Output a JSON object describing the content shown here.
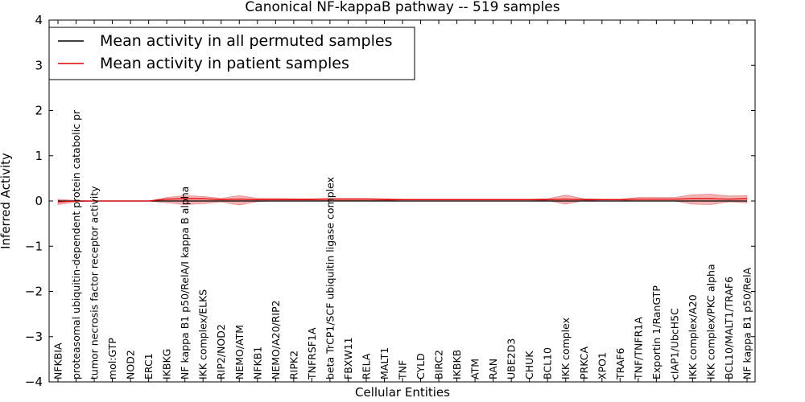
{
  "chart_data": {
    "type": "line",
    "title": "Canonical NF-kappaB pathway -- 519 samples",
    "xlabel": "Cellular Entities",
    "ylabel": "Inferred Activity",
    "ylim": [
      -4,
      4
    ],
    "yticks": [
      -4,
      -3,
      -2,
      -1,
      0,
      1,
      2,
      3,
      4
    ],
    "ytick_labels": [
      "−4",
      "−3",
      "−2",
      "−1",
      "0",
      "1",
      "2",
      "3",
      "4"
    ],
    "legend_position": "top-left",
    "categories": [
      "NFKBIA",
      "proteasomal ubiquitin-dependent protein catabolic pr",
      "tumor necrosis factor receptor activity",
      "mol:GTP",
      "NOD2",
      "ERC1",
      "IKBKG",
      "NF kappa B1 p50/RelA/I kappa B alpha",
      "IKK complex/ELKS",
      "RIP2/NOD2",
      "NEMO/ATM",
      "NFKB1",
      "NEMO/A20/RIP2",
      "RIPK2",
      "TNFRSF1A",
      "beta TrCP1/SCF ubiquitin ligase complex",
      "FBXW11",
      "RELA",
      "MALT1",
      "TNF",
      "CYLD",
      "BIRC2",
      "IKBKB",
      "ATM",
      "RAN",
      "UBE2D3",
      "CHUK",
      "BCL10",
      "IKK complex",
      "PRKCA",
      "XPO1",
      "TRAF6",
      "TNF/TNFR1A",
      "Exportin 1/RanGTP",
      "cIAP1/UbcH5C",
      "IKK complex/A20",
      "IKK complex/PKC alpha",
      "BCL10/MALT1/TRAF6",
      "NF kappa B1 p50/RelA"
    ],
    "series": [
      {
        "name": "Mean activity in all permuted samples",
        "color": "#000000",
        "style": "solid",
        "values": [
          0.0,
          0.0,
          0.0,
          0.0,
          0.0,
          0.0,
          0.0,
          0.0,
          0.0,
          0.0,
          0.0,
          0.0,
          0.0,
          0.0,
          0.0,
          0.0,
          0.0,
          0.0,
          0.0,
          0.0,
          0.0,
          0.0,
          0.0,
          0.0,
          0.0,
          0.0,
          0.0,
          0.0,
          0.0,
          0.0,
          0.0,
          0.0,
          0.0,
          0.0,
          0.0,
          0.0,
          0.0,
          0.0,
          0.0
        ]
      },
      {
        "name": "Mean activity in patient samples",
        "color": "#e00000",
        "style": "solid",
        "values": [
          -0.02,
          0.0,
          0.0,
          0.0,
          0.0,
          0.0,
          0.04,
          0.05,
          0.05,
          0.03,
          0.04,
          0.03,
          0.03,
          0.03,
          0.03,
          0.04,
          0.04,
          0.04,
          0.03,
          0.03,
          0.03,
          0.03,
          0.03,
          0.03,
          0.03,
          0.03,
          0.03,
          0.03,
          0.04,
          0.03,
          0.03,
          0.03,
          0.04,
          0.04,
          0.04,
          0.05,
          0.05,
          0.04,
          0.05
        ],
        "band_upper": [
          0.04,
          0.01,
          0.0,
          0.0,
          0.0,
          0.0,
          0.08,
          0.12,
          0.1,
          0.06,
          0.12,
          0.06,
          0.06,
          0.05,
          0.05,
          0.06,
          0.06,
          0.06,
          0.05,
          0.04,
          0.04,
          0.04,
          0.04,
          0.04,
          0.04,
          0.04,
          0.04,
          0.05,
          0.13,
          0.05,
          0.04,
          0.04,
          0.08,
          0.08,
          0.08,
          0.14,
          0.15,
          0.11,
          0.12
        ],
        "band_lower": [
          -0.08,
          -0.02,
          0.0,
          0.0,
          0.0,
          0.0,
          -0.04,
          -0.08,
          -0.06,
          -0.02,
          -0.09,
          -0.01,
          0.0,
          0.0,
          0.0,
          0.01,
          0.01,
          0.01,
          0.01,
          0.02,
          0.02,
          0.02,
          0.02,
          0.02,
          0.02,
          0.02,
          0.02,
          0.01,
          -0.07,
          0.01,
          0.02,
          0.02,
          0.0,
          0.0,
          0.0,
          -0.07,
          -0.08,
          -0.02,
          -0.04
        ]
      }
    ],
    "reference_line": {
      "style": "dotted",
      "color": "#000000",
      "value": 0
    }
  }
}
